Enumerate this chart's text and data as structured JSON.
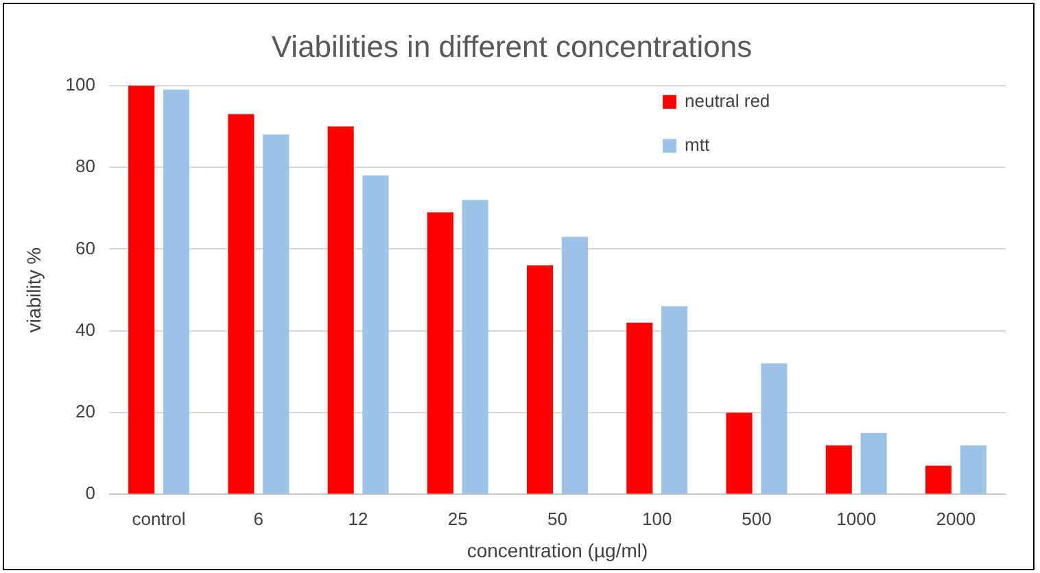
{
  "chart_data": {
    "type": "bar",
    "title": "Viabilities in different concentrations",
    "xlabel": "concentration (µg/ml)",
    "ylabel": "viability %",
    "categories": [
      "control",
      "6",
      "12",
      "25",
      "50",
      "100",
      "500",
      "1000",
      "2000"
    ],
    "series": [
      {
        "name": "neutral red",
        "color": "#ff0000",
        "values": [
          100,
          93,
          90,
          69,
          56,
          42,
          20,
          12,
          7
        ]
      },
      {
        "name": "mtt",
        "color": "#9dc3e6",
        "values": [
          99,
          88,
          78,
          72,
          63,
          46,
          32,
          15,
          12
        ]
      }
    ],
    "ylim": [
      0,
      100
    ],
    "yticks": [
      0,
      20,
      40,
      60,
      80,
      100
    ],
    "grid": "y",
    "legend": "top right"
  }
}
